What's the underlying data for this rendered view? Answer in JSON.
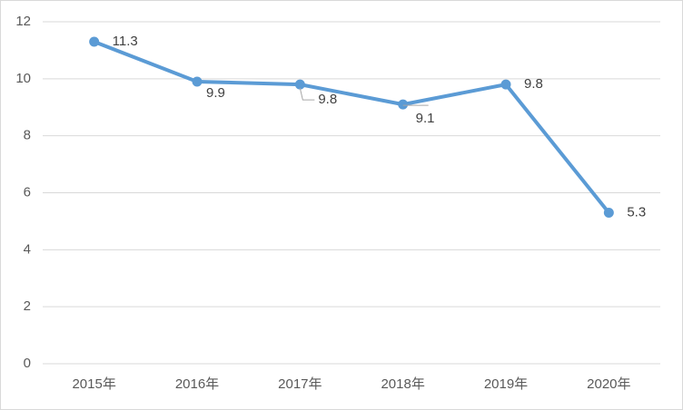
{
  "chart_data": {
    "type": "line",
    "categories": [
      "2015年",
      "2016年",
      "2017年",
      "2018年",
      "2019年",
      "2020年"
    ],
    "series": [
      {
        "color": "#5b9bd5",
        "values": [
          11.3,
          9.9,
          9.8,
          9.1,
          9.8,
          5.3
        ]
      }
    ],
    "ylim": [
      0,
      12
    ],
    "yticks": [
      0,
      2,
      4,
      6,
      8,
      10,
      12
    ],
    "grid": true,
    "data_labels": true
  }
}
